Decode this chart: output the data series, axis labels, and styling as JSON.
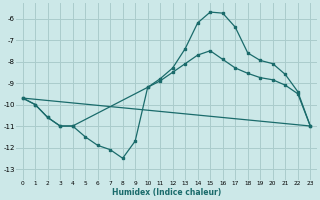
{
  "title": "",
  "xlabel": "Humidex (Indice chaleur)",
  "bg_color": "#cce8e8",
  "grid_color": "#aacccc",
  "line_color": "#1a6b6b",
  "xlim": [
    -0.5,
    23.5
  ],
  "ylim": [
    -13.5,
    -5.3
  ],
  "yticks": [
    -13,
    -12,
    -11,
    -10,
    -9,
    -8,
    -7,
    -6
  ],
  "xticks": [
    0,
    1,
    2,
    3,
    4,
    5,
    6,
    7,
    8,
    9,
    10,
    11,
    12,
    13,
    14,
    15,
    16,
    17,
    18,
    19,
    20,
    21,
    22,
    23
  ],
  "line1_x": [
    0,
    1,
    2,
    3,
    4,
    5,
    6,
    7,
    8,
    9,
    10,
    11,
    12,
    13,
    14,
    15,
    16,
    17,
    18,
    19,
    20,
    21,
    22,
    23
  ],
  "line1_y": [
    -9.7,
    -10.0,
    -10.6,
    -11.0,
    -11.0,
    -11.5,
    -11.9,
    -12.1,
    -12.5,
    -11.7,
    -9.2,
    -8.8,
    -8.3,
    -7.4,
    -6.2,
    -5.7,
    -5.75,
    -6.4,
    -7.6,
    -7.95,
    -8.1,
    -8.6,
    -9.4,
    -11.0
  ],
  "line2_x": [
    0,
    1,
    2,
    3,
    4,
    10,
    11,
    12,
    13,
    14,
    15,
    16,
    17,
    18,
    19,
    20,
    21,
    22,
    23
  ],
  "line2_y": [
    -9.7,
    -10.0,
    -10.6,
    -11.0,
    -11.0,
    -9.2,
    -8.9,
    -8.5,
    -8.1,
    -7.7,
    -7.5,
    -7.9,
    -8.3,
    -8.55,
    -8.75,
    -8.85,
    -9.1,
    -9.5,
    -11.0
  ],
  "line3_x": [
    0,
    23
  ],
  "line3_y": [
    -9.7,
    -11.0
  ]
}
